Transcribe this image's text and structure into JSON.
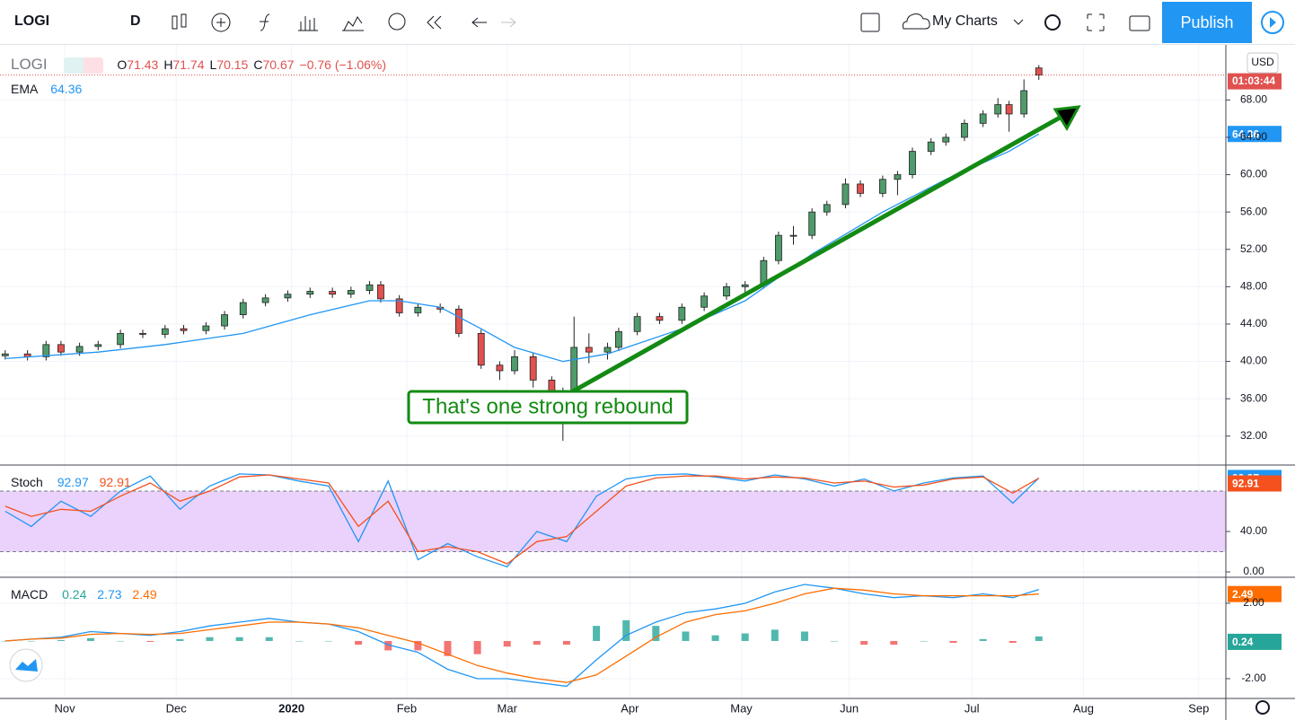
{
  "toolbar": {
    "symbol": "LOGI",
    "interval": "D",
    "layouts": "My Charts",
    "publish": "Publish"
  },
  "chart_data": [
    {
      "type": "candlestick",
      "symbol": "LOGI",
      "legend": {
        "ohlc_prefixes": [
          "O",
          "H",
          "L",
          "C"
        ],
        "change": "−0.76 (−1.06%)"
      },
      "currency": "USD",
      "countdown": "01:03:44",
      "annotation": "That's one strong rebound",
      "up_color": "#4f9b6b",
      "down_color": "#e0514f",
      "grid": true,
      "xlim": [
        13.6,
        343.3
      ],
      "xticks": [
        {
          "value": 31,
          "label": "Nov"
        },
        {
          "value": 61,
          "label": "Dec"
        },
        {
          "value": 92,
          "label": "2020"
        },
        {
          "value": 123,
          "label": "Feb"
        },
        {
          "value": 150,
          "label": "Mar"
        },
        {
          "value": 183,
          "label": "Apr"
        },
        {
          "value": 213,
          "label": "May"
        },
        {
          "value": 242,
          "label": "Jun"
        },
        {
          "value": 275,
          "label": "Jul"
        },
        {
          "value": 305,
          "label": "Aug"
        },
        {
          "value": 336,
          "label": "Sep"
        }
      ],
      "ylim": [
        28.9,
        73.9
      ],
      "yticks": [
        {
          "value": 32,
          "label": "32.00"
        },
        {
          "value": 36,
          "label": "36.00"
        },
        {
          "value": 40,
          "label": "40.00"
        },
        {
          "value": 44,
          "label": "44.00"
        },
        {
          "value": 48,
          "label": "48.00"
        },
        {
          "value": 52,
          "label": "52.00"
        },
        {
          "value": 56,
          "label": "56.00"
        },
        {
          "value": 60,
          "label": "60.00"
        },
        {
          "value": 64,
          "label": "64.00"
        },
        {
          "value": 68,
          "label": "68.00"
        }
      ],
      "candles": {
        "x": [
          15,
          21,
          26,
          30,
          35,
          40,
          46,
          52,
          58,
          63,
          69,
          74,
          79,
          85,
          91,
          97,
          103,
          108,
          113,
          116,
          121,
          126,
          132,
          137,
          143,
          148,
          152,
          157,
          162,
          165,
          168,
          172,
          177,
          180,
          185,
          191,
          197,
          203,
          209,
          214,
          219,
          223,
          227,
          232,
          236,
          241,
          245,
          251,
          255,
          259,
          264,
          268,
          273,
          278,
          282,
          285,
          289,
          293
        ],
        "open": [
          40.6,
          40.8,
          40.5,
          41.8,
          41.0,
          41.6,
          41.8,
          43.0,
          42.9,
          43.5,
          43.3,
          43.8,
          45.0,
          46.3,
          46.8,
          47.2,
          47.5,
          47.2,
          47.6,
          48.2,
          46.7,
          45.2,
          45.8,
          45.6,
          43.0,
          39.6,
          39.0,
          40.5,
          38.0,
          36.8,
          34.0,
          41.5,
          41.0,
          41.5,
          43.2,
          44.8,
          44.4,
          45.8,
          47.0,
          48.0,
          48.2,
          50.8,
          53.5,
          53.5,
          56.0,
          56.8,
          59.0,
          58.0,
          59.5,
          60.0,
          62.5,
          63.5,
          64.0,
          65.5,
          66.5,
          67.5,
          66.5,
          71.43
        ],
        "high": [
          41.2,
          41.2,
          42.2,
          42.2,
          42.0,
          42.2,
          43.4,
          43.4,
          43.9,
          43.9,
          44.2,
          45.4,
          46.7,
          47.2,
          47.6,
          47.9,
          47.9,
          48.0,
          48.6,
          48.6,
          47.1,
          46.2,
          46.2,
          46.0,
          43.4,
          40.0,
          41.2,
          40.9,
          38.4,
          37.2,
          44.8,
          43.0,
          42.0,
          43.6,
          45.2,
          45.2,
          46.2,
          47.4,
          48.4,
          48.6,
          51.2,
          53.9,
          54.5,
          56.4,
          57.2,
          59.6,
          59.4,
          59.9,
          60.4,
          62.9,
          63.9,
          64.4,
          65.9,
          66.9,
          68.2,
          67.9,
          70.2,
          71.74
        ],
        "low": [
          40.2,
          40.1,
          40.1,
          40.6,
          40.6,
          41.2,
          41.4,
          42.5,
          42.5,
          42.9,
          42.9,
          43.4,
          44.6,
          45.9,
          46.4,
          46.8,
          46.8,
          46.8,
          47.2,
          46.3,
          44.8,
          44.8,
          45.2,
          42.6,
          39.2,
          38.0,
          38.6,
          37.2,
          35.5,
          31.5,
          33.6,
          39.8,
          40.2,
          41.1,
          42.8,
          44.0,
          44.0,
          45.4,
          46.6,
          47.2,
          47.8,
          50.4,
          52.5,
          53.1,
          55.6,
          56.4,
          57.6,
          57.6,
          57.8,
          59.6,
          62.1,
          63.1,
          63.6,
          65.1,
          66.1,
          64.6,
          66.1,
          70.15
        ],
        "close": [
          40.8,
          40.5,
          41.8,
          41.0,
          41.6,
          41.8,
          43.0,
          42.9,
          43.5,
          43.3,
          43.8,
          45.0,
          46.3,
          46.8,
          47.2,
          47.5,
          47.2,
          47.6,
          48.2,
          46.7,
          45.2,
          45.8,
          45.6,
          43.0,
          39.6,
          39.0,
          40.5,
          38.0,
          36.8,
          34.0,
          41.5,
          41.0,
          41.5,
          43.2,
          44.8,
          44.4,
          45.8,
          47.0,
          48.0,
          48.2,
          50.8,
          53.5,
          53.5,
          56.0,
          56.8,
          59.0,
          58.0,
          59.5,
          60.0,
          62.5,
          63.5,
          64.0,
          65.5,
          66.5,
          67.5,
          66.5,
          69.0,
          70.67
        ]
      },
      "ema": {
        "name": "EMA",
        "color": "#2196f3",
        "x": [
          15,
          40,
          58,
          79,
          97,
          113,
          121,
          132,
          143,
          152,
          165,
          177,
          197,
          214,
          232,
          251,
          268,
          285,
          293
        ],
        "values": [
          40.3,
          41.0,
          41.8,
          43.0,
          45.0,
          46.5,
          46.5,
          45.8,
          43.5,
          41.5,
          40.0,
          40.8,
          43.5,
          46.5,
          51.5,
          56.0,
          59.5,
          62.5,
          64.36
        ]
      }
    },
    {
      "type": "line",
      "title": "Stoch",
      "xlim": [
        13.6,
        343.3
      ],
      "ylim": [
        -5.3,
        105.8
      ],
      "yticks": [
        {
          "value": 0,
          "label": "0.00"
        },
        {
          "value": 40,
          "label": "40.00"
        }
      ],
      "band": [
        20,
        80
      ],
      "band_color": "#ead2fc",
      "x": [
        15,
        22,
        30,
        38,
        46,
        54,
        62,
        70,
        78,
        86,
        94,
        102,
        110,
        118,
        126,
        134,
        142,
        150,
        158,
        166,
        174,
        182,
        190,
        198,
        206,
        214,
        222,
        230,
        238,
        246,
        254,
        262,
        270,
        278,
        286,
        293
      ],
      "series": [
        {
          "color": "#2196f3",
          "values": [
            60,
            45,
            70,
            55,
            80,
            95,
            62,
            85,
            97,
            96,
            90,
            85,
            30,
            90,
            12,
            28,
            15,
            5,
            40,
            30,
            75,
            92,
            96,
            97,
            94,
            90,
            96,
            92,
            85,
            92,
            80,
            88,
            93,
            95,
            68,
            92.97
          ]
        },
        {
          "color": "#f4511e",
          "values": [
            65,
            55,
            62,
            60,
            75,
            88,
            70,
            80,
            94,
            96,
            92,
            88,
            45,
            70,
            20,
            25,
            20,
            8,
            30,
            35,
            60,
            85,
            93,
            95,
            95,
            92,
            94,
            93,
            88,
            90,
            84,
            86,
            92,
            94,
            78,
            92.91
          ]
        }
      ]
    },
    {
      "type": "macd",
      "title": "MACD",
      "xlim": [
        13.6,
        343.3
      ],
      "ylim": [
        -3.05,
        3.38
      ],
      "yticks": [
        {
          "value": 2,
          "label": "2.00"
        },
        {
          "value": -2,
          "label": "-2.00"
        }
      ],
      "x": [
        15,
        22,
        30,
        38,
        46,
        54,
        62,
        70,
        78,
        86,
        94,
        102,
        110,
        118,
        126,
        134,
        142,
        150,
        158,
        166,
        174,
        182,
        190,
        198,
        206,
        214,
        222,
        230,
        238,
        246,
        254,
        262,
        270,
        278,
        286,
        293
      ],
      "histogram": {
        "up_color": "#26a69a",
        "down_color": "#ef5350",
        "values": [
          0,
          0,
          0.05,
          0.15,
          0,
          -0.05,
          0.1,
          0.2,
          0.2,
          0.2,
          0,
          0,
          -0.2,
          -0.5,
          -0.5,
          -0.8,
          -0.7,
          -0.3,
          -0.2,
          -0.2,
          0.8,
          1.1,
          0.8,
          0.5,
          0.3,
          0.4,
          0.6,
          0.5,
          0,
          -0.2,
          -0.2,
          0,
          -0.1,
          0.1,
          -0.1,
          0.24
        ]
      },
      "series": [
        {
          "color": "#2196f3",
          "values": [
            0.0,
            0.1,
            0.2,
            0.5,
            0.4,
            0.3,
            0.5,
            0.8,
            1.0,
            1.2,
            1.0,
            0.9,
            0.5,
            -0.2,
            -0.6,
            -1.5,
            -2.0,
            -2.0,
            -2.2,
            -2.4,
            -1.0,
            0.3,
            1.0,
            1.5,
            1.7,
            2.0,
            2.6,
            3.0,
            2.8,
            2.5,
            2.3,
            2.4,
            2.3,
            2.5,
            2.3,
            2.73
          ]
        },
        {
          "color": "#ff6d00",
          "values": [
            0.0,
            0.1,
            0.15,
            0.35,
            0.4,
            0.35,
            0.4,
            0.6,
            0.8,
            1.0,
            1.0,
            0.9,
            0.7,
            0.3,
            -0.1,
            -0.7,
            -1.3,
            -1.7,
            -2.0,
            -2.2,
            -1.8,
            -0.8,
            0.2,
            1.0,
            1.4,
            1.6,
            2.0,
            2.5,
            2.8,
            2.7,
            2.5,
            2.4,
            2.4,
            2.4,
            2.4,
            2.49
          ]
        }
      ]
    }
  ]
}
